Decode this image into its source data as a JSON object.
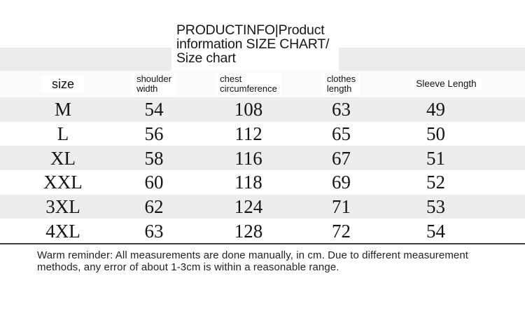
{
  "title": {
    "lines": [
      "PRODUCTINFO|Product",
      "information SIZE CHART/",
      "Size chart"
    ]
  },
  "table": {
    "columns": [
      {
        "id": "size",
        "lines": [
          "size"
        ]
      },
      {
        "id": "shoulder-width",
        "lines": [
          "shoulder",
          "width"
        ]
      },
      {
        "id": "chest-circumference",
        "lines": [
          "chest",
          "circumference"
        ]
      },
      {
        "id": "clothes-length",
        "lines": [
          "clothes",
          "length"
        ]
      },
      {
        "id": "sleeve-length",
        "lines": [
          "Sleeve Length"
        ]
      }
    ],
    "rows": [
      {
        "size": "M",
        "shoulder_width": "54",
        "chest_circumference": "108",
        "clothes_length": "63",
        "sleeve_length": "49"
      },
      {
        "size": "L",
        "shoulder_width": "56",
        "chest_circumference": "112",
        "clothes_length": "65",
        "sleeve_length": "50"
      },
      {
        "size": "XL",
        "shoulder_width": "58",
        "chest_circumference": "116",
        "clothes_length": "67",
        "sleeve_length": "51"
      },
      {
        "size": "XXL",
        "shoulder_width": "60",
        "chest_circumference": "118",
        "clothes_length": "69",
        "sleeve_length": "52"
      },
      {
        "size": "3XL",
        "shoulder_width": "62",
        "chest_circumference": "124",
        "clothes_length": "71",
        "sleeve_length": "53"
      },
      {
        "size": "4XL",
        "shoulder_width": "63",
        "chest_circumference": "128",
        "clothes_length": "72",
        "sleeve_length": "54"
      }
    ]
  },
  "footer": {
    "lines": [
      "Warm reminder: All measurements are done manually, in cm. Due to different measurement",
      "methods, any error of about 1-3cm is within a reasonable range."
    ]
  },
  "colors": {
    "stripe": "#ededed",
    "band": "#ececec",
    "header_row": "#fbfbfb",
    "divider": "#3e3e3e",
    "text": "#141414"
  }
}
